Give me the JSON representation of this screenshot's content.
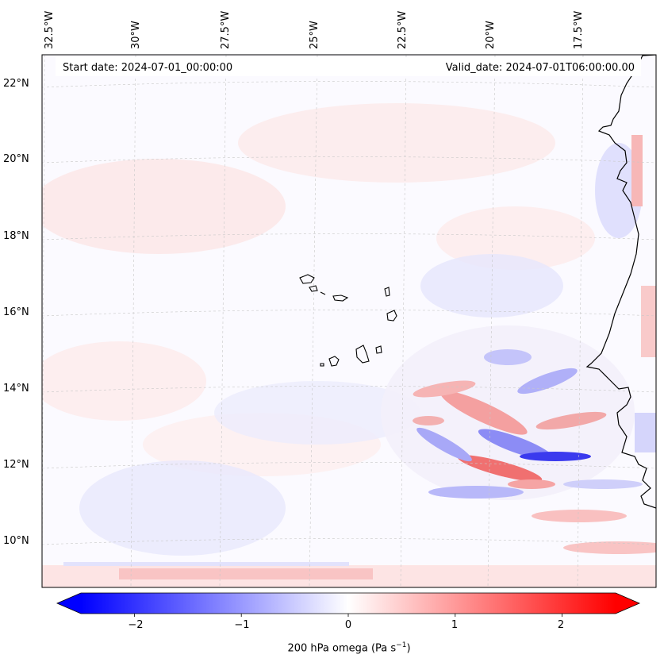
{
  "header": {
    "start_date": "Start date: 2024-07-01_00:00:00",
    "valid_date": "Valid_date: 2024-07-01T06:00:00.00"
  },
  "axes": {
    "lon_labels": [
      "32.5°W",
      "30°W",
      "27.5°W",
      "25°W",
      "22.5°W",
      "20°W",
      "17.5°W"
    ],
    "lat_labels": [
      "22°N",
      "20°N",
      "18°N",
      "16°N",
      "14°N",
      "12°N",
      "10°N"
    ]
  },
  "colorbar": {
    "ticks": [
      "−2",
      "−1",
      "0",
      "1",
      "2"
    ],
    "tick_values": [
      -2,
      -1,
      0,
      1,
      2
    ],
    "min": -2.5,
    "max": 2.5,
    "label_main": "200 hPa omega (Pa s",
    "label_sup": "−1",
    "label_close": ")"
  },
  "colors": {
    "negative": "#0000ff",
    "neutral": "#ffffff",
    "positive": "#ff0000",
    "coast": "#000000"
  }
}
